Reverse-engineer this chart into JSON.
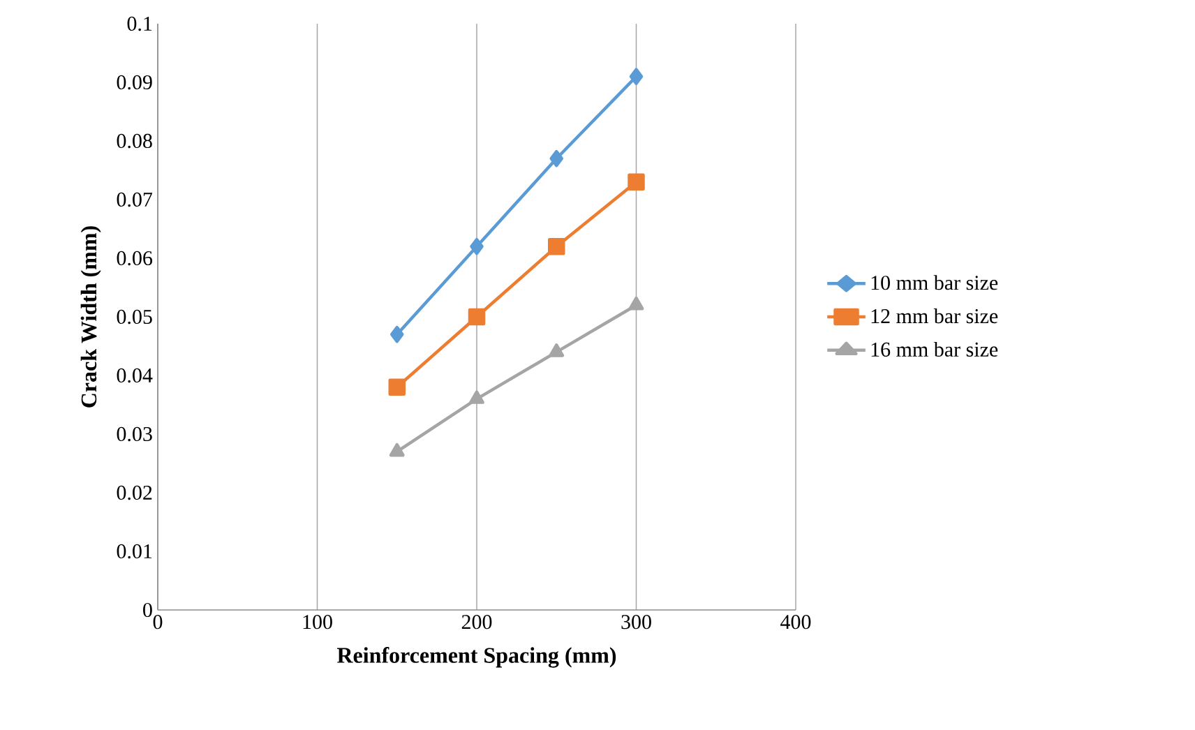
{
  "chart_data": {
    "type": "line",
    "xlabel": "Reinforcement Spacing (mm)",
    "ylabel": "Crack Width (mm)",
    "series": [
      {
        "name": "10 mm bar size",
        "color": "#5b9bd5",
        "marker": "diamond",
        "x": [
          150,
          200,
          250,
          300
        ],
        "values": [
          0.047,
          0.062,
          0.077,
          0.091
        ]
      },
      {
        "name": "12 mm bar size",
        "color": "#ed7d31",
        "marker": "square",
        "x": [
          150,
          200,
          250,
          300
        ],
        "values": [
          0.038,
          0.05,
          0.062,
          0.073
        ]
      },
      {
        "name": "16 mm bar size",
        "color": "#a5a5a5",
        "marker": "triangle",
        "x": [
          150,
          200,
          250,
          300
        ],
        "values": [
          0.027,
          0.036,
          0.044,
          0.052
        ]
      }
    ],
    "xlim": [
      0,
      400
    ],
    "xticks": [
      0,
      100,
      200,
      300,
      400
    ],
    "ylim": [
      0,
      0.1
    ],
    "yticks": [
      0,
      0.01,
      0.02,
      0.03,
      0.04,
      0.05,
      0.06,
      0.07,
      0.08,
      0.09,
      0.1
    ],
    "grid": "x",
    "legend": "right",
    "line_style": "solid"
  }
}
